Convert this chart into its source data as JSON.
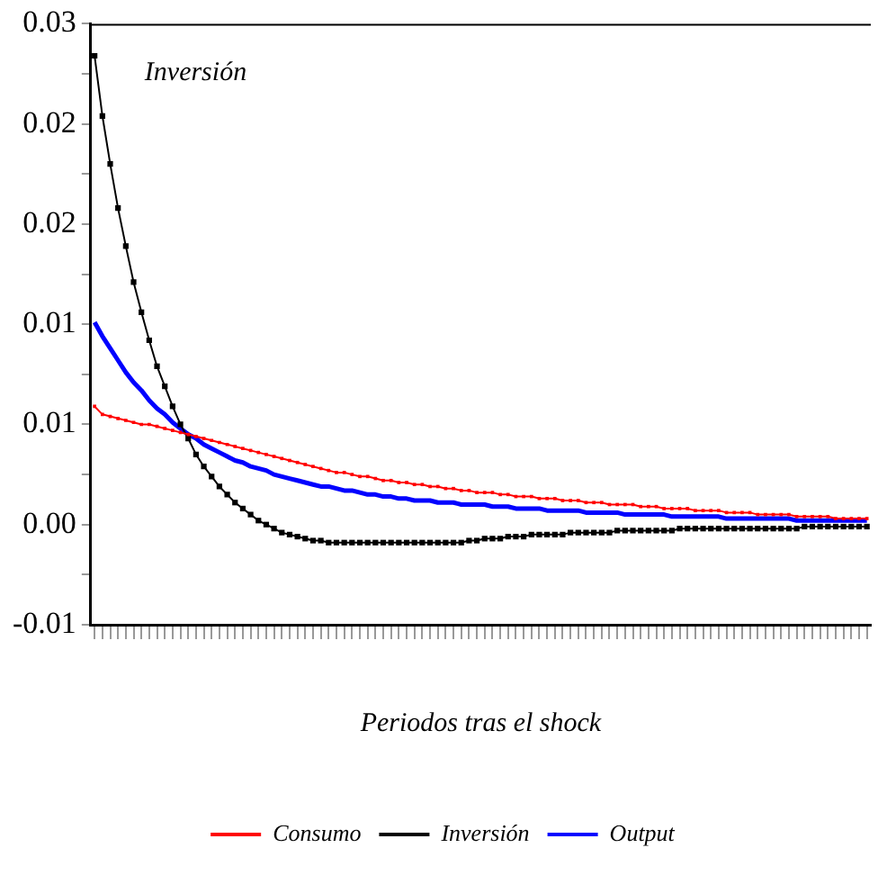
{
  "chart_data": {
    "type": "line",
    "xlabel": "Periodos tras el shock",
    "categories": [
      null,
      null,
      null,
      null,
      null,
      null,
      null,
      null,
      null,
      null,
      null,
      null,
      null,
      null,
      null,
      null,
      null,
      null,
      null,
      null,
      null,
      null,
      null,
      null,
      null,
      null,
      null,
      null,
      null,
      null,
      null,
      null,
      null,
      null,
      null,
      null,
      null,
      null,
      null,
      null,
      null,
      null,
      null,
      null,
      null,
      null,
      null,
      null,
      null,
      null,
      null,
      null,
      null,
      null,
      null,
      null,
      null,
      null,
      null,
      null,
      null,
      null,
      null,
      null,
      null,
      null,
      null,
      null,
      null,
      null,
      null,
      null,
      null,
      null,
      null,
      null,
      null,
      null,
      null,
      null,
      null,
      null,
      null,
      null,
      null,
      null,
      null,
      null,
      null,
      null,
      null,
      null,
      null,
      null,
      null,
      null,
      null,
      null,
      null,
      null
    ],
    "series": [
      {
        "name": "Consumo",
        "color": "#ff0000",
        "marker": "square",
        "values": [
          0.0059,
          0.0055,
          0.0054,
          0.0053,
          0.0052,
          0.0051,
          0.005,
          0.005,
          0.0049,
          0.0048,
          0.0047,
          0.0046,
          0.0045,
          0.0044,
          0.0043,
          0.0042,
          0.0041,
          0.004,
          0.0039,
          0.0038,
          0.0037,
          0.0036,
          0.0035,
          0.0034,
          0.0033,
          0.0032,
          0.0031,
          0.003,
          0.0029,
          0.0028,
          0.0027,
          0.0026,
          0.0026,
          0.0025,
          0.0024,
          0.0024,
          0.0023,
          0.0022,
          0.0022,
          0.0021,
          0.0021,
          0.002,
          0.002,
          0.0019,
          0.0019,
          0.0018,
          0.0018,
          0.0017,
          0.0017,
          0.0016,
          0.0016,
          0.0016,
          0.0015,
          0.0015,
          0.0014,
          0.0014,
          0.0014,
          0.0013,
          0.0013,
          0.0013,
          0.0012,
          0.0012,
          0.0012,
          0.0011,
          0.0011,
          0.0011,
          0.001,
          0.001,
          0.001,
          0.001,
          0.0009,
          0.0009,
          0.0009,
          0.0008,
          0.0008,
          0.0008,
          0.0008,
          0.0007,
          0.0007,
          0.0007,
          0.0007,
          0.0006,
          0.0006,
          0.0006,
          0.0006,
          0.0005,
          0.0005,
          0.0005,
          0.0005,
          0.0005,
          0.0004,
          0.0004,
          0.0004,
          0.0004,
          0.0004,
          0.0003,
          0.0003,
          0.0003,
          0.0003,
          0.0003
        ]
      },
      {
        "name": "Inversión",
        "color": "#000000",
        "marker": "square",
        "values": [
          0.0234,
          0.0204,
          0.018,
          0.0158,
          0.0139,
          0.0121,
          0.0106,
          0.0092,
          0.0079,
          0.0069,
          0.0059,
          0.005,
          0.0043,
          0.0035,
          0.0029,
          0.0024,
          0.0019,
          0.0015,
          0.0011,
          0.0008,
          0.0005,
          0.0002,
          0.0,
          -0.0002,
          -0.0004,
          -0.0005,
          -0.0006,
          -0.0007,
          -0.0008,
          -0.0008,
          -0.0009,
          -0.0009,
          -0.0009,
          -0.0009,
          -0.0009,
          -0.0009,
          -0.0009,
          -0.0009,
          -0.0009,
          -0.0009,
          -0.0009,
          -0.0009,
          -0.0009,
          -0.0009,
          -0.0009,
          -0.0009,
          -0.0009,
          -0.0009,
          -0.0008,
          -0.0008,
          -0.0007,
          -0.0007,
          -0.0007,
          -0.0006,
          -0.0006,
          -0.0006,
          -0.0005,
          -0.0005,
          -0.0005,
          -0.0005,
          -0.0005,
          -0.0004,
          -0.0004,
          -0.0004,
          -0.0004,
          -0.0004,
          -0.0004,
          -0.0003,
          -0.0003,
          -0.0003,
          -0.0003,
          -0.0003,
          -0.0003,
          -0.0003,
          -0.0003,
          -0.0002,
          -0.0002,
          -0.0002,
          -0.0002,
          -0.0002,
          -0.0002,
          -0.0002,
          -0.0002,
          -0.0002,
          -0.0002,
          -0.0002,
          -0.0002,
          -0.0002,
          -0.0002,
          -0.0002,
          -0.0002,
          -0.0001,
          -0.0001,
          -0.0001,
          -0.0001,
          -0.0001,
          -0.0001,
          -0.0001,
          -0.0001,
          -0.0001
        ]
      },
      {
        "name": "Output",
        "color": "#0000ff",
        "marker": "none",
        "values": [
          0.0101,
          0.0094,
          0.0088,
          0.0082,
          0.0076,
          0.0071,
          0.0067,
          0.0062,
          0.0058,
          0.0055,
          0.0051,
          0.0048,
          0.0045,
          0.0043,
          0.004,
          0.0038,
          0.0036,
          0.0034,
          0.0032,
          0.0031,
          0.0029,
          0.0028,
          0.0027,
          0.0025,
          0.0024,
          0.0023,
          0.0022,
          0.0021,
          0.002,
          0.0019,
          0.0019,
          0.0018,
          0.0017,
          0.0017,
          0.0016,
          0.0015,
          0.0015,
          0.0014,
          0.0014,
          0.0013,
          0.0013,
          0.0012,
          0.0012,
          0.0012,
          0.0011,
          0.0011,
          0.0011,
          0.001,
          0.001,
          0.001,
          0.001,
          0.0009,
          0.0009,
          0.0009,
          0.0008,
          0.0008,
          0.0008,
          0.0008,
          0.0007,
          0.0007,
          0.0007,
          0.0007,
          0.0007,
          0.0006,
          0.0006,
          0.0006,
          0.0006,
          0.0006,
          0.0005,
          0.0005,
          0.0005,
          0.0005,
          0.0005,
          0.0005,
          0.0004,
          0.0004,
          0.0004,
          0.0004,
          0.0004,
          0.0004,
          0.0004,
          0.0003,
          0.0003,
          0.0003,
          0.0003,
          0.0003,
          0.0003,
          0.0003,
          0.0003,
          0.0003,
          0.0002,
          0.0002,
          0.0002,
          0.0002,
          0.0002,
          0.0002,
          0.0002,
          0.0002,
          0.0002,
          0.0002
        ]
      }
    ],
    "ylim": [
      -0.005,
      0.025
    ],
    "yticks": [
      {
        "value": 0.025,
        "label": "0.03"
      },
      {
        "value": 0.0225,
        "label": null
      },
      {
        "value": 0.02,
        "label": "0.02"
      },
      {
        "value": 0.0175,
        "label": null
      },
      {
        "value": 0.015,
        "label": "0.02"
      },
      {
        "value": 0.0125,
        "label": null
      },
      {
        "value": 0.01,
        "label": "0.01"
      },
      {
        "value": 0.0075,
        "label": null
      },
      {
        "value": 0.005,
        "label": "0.01"
      },
      {
        "value": 0.0025,
        "label": null
      },
      {
        "value": 0,
        "label": "0.00"
      },
      {
        "value": -0.0025,
        "label": null
      },
      {
        "value": -0.005,
        "label": "-0.01"
      }
    ],
    "annotations": [
      "Inversión"
    ],
    "grid": false,
    "legend": "bottom",
    "tick_labels": "y"
  }
}
